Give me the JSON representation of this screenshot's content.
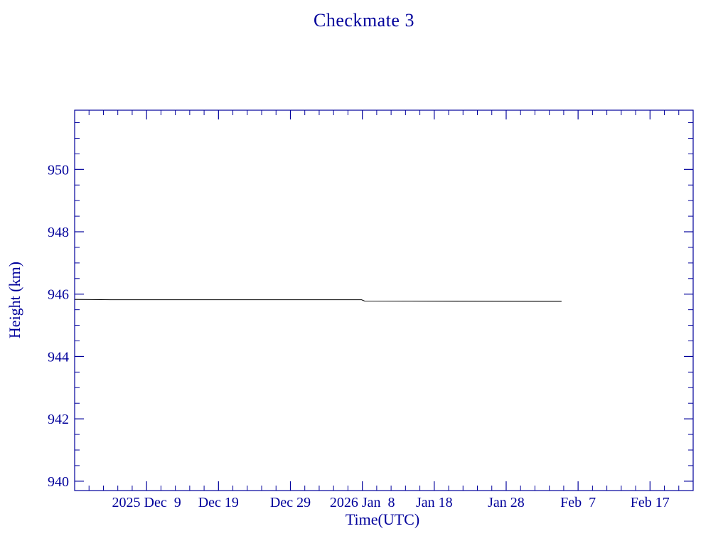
{
  "chart_data": {
    "type": "line",
    "title": "Checkmate 3",
    "xlabel": "Time(UTC)",
    "ylabel": "Height (km)",
    "axis_color": "#00009b",
    "background": "#ffffff",
    "grid": false,
    "legend": false,
    "xlim": [
      0,
      86
    ],
    "ylim": [
      939.7,
      951.9
    ],
    "x_ticks": [
      {
        "pos": 10,
        "label": "2025 Dec  9"
      },
      {
        "pos": 20,
        "label": "Dec 19"
      },
      {
        "pos": 30,
        "label": "Dec 29"
      },
      {
        "pos": 40,
        "label": "2026 Jan  8"
      },
      {
        "pos": 50,
        "label": "Jan 18"
      },
      {
        "pos": 60,
        "label": "Jan 28"
      },
      {
        "pos": 70,
        "label": "Feb  7"
      },
      {
        "pos": 80,
        "label": "Feb 17"
      }
    ],
    "x_major_step": 10,
    "x_minor_step": 2,
    "y_ticks": [
      940,
      942,
      944,
      946,
      948,
      950
    ],
    "y_major_step": 2,
    "y_minor_step": 0.5,
    "series": [
      {
        "name": "height",
        "color": "#000000",
        "points": [
          [
            0,
            945.83
          ],
          [
            5,
            945.82
          ],
          [
            39.9,
            945.82
          ],
          [
            40.3,
            945.78
          ],
          [
            67.7,
            945.77
          ]
        ]
      }
    ]
  }
}
